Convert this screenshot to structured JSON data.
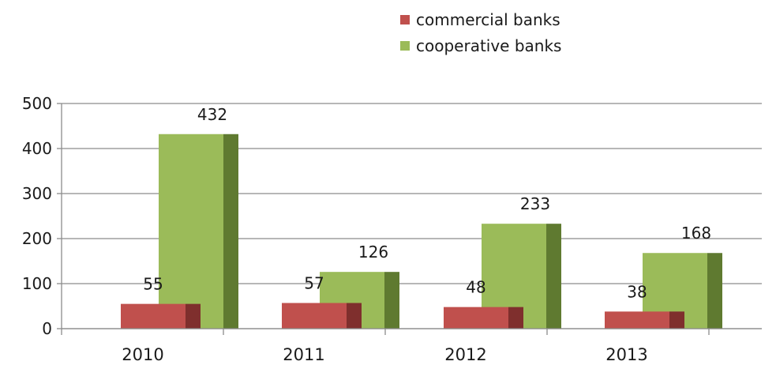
{
  "chart_data": {
    "type": "bar",
    "categories": [
      "2010",
      "2011",
      "2012",
      "2013"
    ],
    "series": [
      {
        "name": "commercial banks",
        "values": [
          55,
          57,
          48,
          38
        ],
        "color": "#c0504d",
        "side_color": "#7f2f2d"
      },
      {
        "name": "cooperative banks",
        "values": [
          432,
          126,
          233,
          168
        ],
        "color": "#9bbb59",
        "side_color": "#5f7a30"
      }
    ],
    "ylim": [
      0,
      500
    ],
    "yticks": [
      "0",
      "100",
      "200",
      "300",
      "400",
      "500"
    ],
    "grid": true,
    "legend_position": "top-center",
    "title": "",
    "xlabel": "",
    "ylabel": ""
  }
}
